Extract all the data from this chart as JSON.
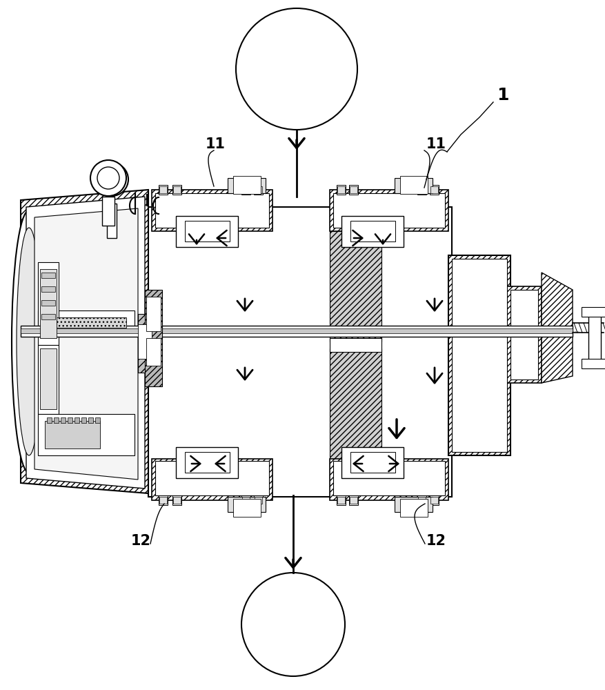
{
  "bg_color": "#ffffff",
  "line_color": "#000000",
  "fig_width": 8.77,
  "fig_height": 10.0,
  "dpi": 100
}
